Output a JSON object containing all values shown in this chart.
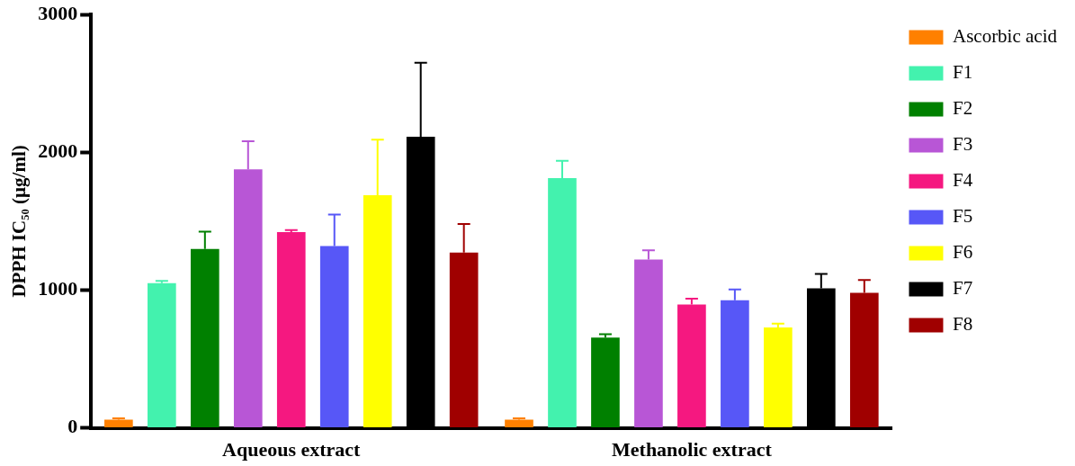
{
  "chart_data": {
    "type": "bar",
    "ylabel": "DPPH IC₅₀ (µg/ml)",
    "categories": [
      "Aqueous extract",
      "Methanolic extract"
    ],
    "series": [
      {
        "name": "Ascorbic acid",
        "color": "#ff8000",
        "values": [
          60,
          60
        ],
        "errors": [
          [
            60,
            70
          ],
          [
            60,
            70
          ]
        ]
      },
      {
        "name": "F1",
        "color": "#43f2ae",
        "values": [
          1051,
          1813
        ],
        "errors": [
          [
            1051,
            1067
          ],
          [
            1813,
            1939
          ]
        ]
      },
      {
        "name": "F2",
        "color": "#008000",
        "values": [
          1298,
          655
        ],
        "errors": [
          [
            1298,
            1425
          ],
          [
            655,
            679
          ]
        ]
      },
      {
        "name": "F3",
        "color": "#b856d6",
        "values": [
          1877,
          1222
        ],
        "errors": [
          [
            1877,
            2081
          ],
          [
            1222,
            1289
          ]
        ]
      },
      {
        "name": "F4",
        "color": "#f51880",
        "values": [
          1421,
          895
        ],
        "errors": [
          [
            1421,
            1436
          ],
          [
            895,
            937
          ]
        ]
      },
      {
        "name": "F5",
        "color": "#5757f7",
        "values": [
          1320,
          926
        ],
        "errors": [
          [
            1320,
            1548
          ],
          [
            926,
            1004
          ]
        ]
      },
      {
        "name": "F6",
        "color": "#ffff00",
        "values": [
          1689,
          728
        ],
        "errors": [
          [
            1689,
            2092
          ],
          [
            728,
            757
          ]
        ]
      },
      {
        "name": "F7",
        "color": "#000000",
        "values": [
          2114,
          1013
        ],
        "errors": [
          [
            2114,
            2651
          ],
          [
            1013,
            1118
          ]
        ]
      },
      {
        "name": "F8",
        "color": "#a00000",
        "values": [
          1273,
          980
        ],
        "errors": [
          [
            1273,
            1479
          ],
          [
            980,
            1073
          ]
        ]
      }
    ],
    "ylim": [
      0,
      3000
    ],
    "yticks": [
      0,
      1000,
      2000,
      3000
    ],
    "grid": false,
    "legend": "right"
  }
}
